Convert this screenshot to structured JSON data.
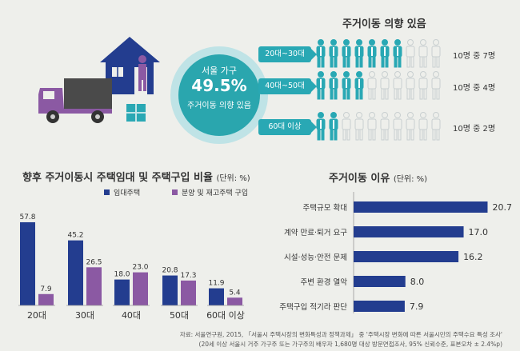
{
  "colors": {
    "navy": "#233d8f",
    "purple": "#8b59a3",
    "teal": "#29a8b4",
    "light_teal": "#bfe3e6"
  },
  "badge": {
    "line1": "서울 가구",
    "line2": "49.5%",
    "line3": "주거이동 의향 있음"
  },
  "intent": {
    "title": "주거이동 의향 있음",
    "rows": [
      {
        "age": "20대~30대",
        "ratio_text": "10명 중 7명",
        "count": 7
      },
      {
        "age": "40대~50대",
        "ratio_text": "10명 중 4명",
        "count": 4
      },
      {
        "age": "60대 이상",
        "ratio_text": "10명 중 2명",
        "count": 2
      }
    ]
  },
  "chart_data": [
    {
      "type": "bar",
      "title": "향후 주거이동시 주택임대 및 주택구입 비율",
      "unit": "(단위: %)",
      "categories": [
        "20대",
        "30대",
        "40대",
        "50대",
        "60대 이상"
      ],
      "series": [
        {
          "name": "임대주택",
          "values": [
            57.8,
            45.2,
            18.0,
            20.8,
            11.9
          ]
        },
        {
          "name": "분양 및 재고주택 구입",
          "values": [
            7.9,
            26.5,
            23.0,
            17.3,
            5.4
          ]
        }
      ],
      "ylim": [
        0,
        60
      ]
    },
    {
      "type": "bar",
      "orientation": "horizontal",
      "title": "주거이동 이유",
      "unit": "(단위: %)",
      "categories": [
        "주택규모 확대",
        "계약 만료·퇴거 요구",
        "시설·성능·안전 문제",
        "주변 환경 열악",
        "주택구입 적기라 판단"
      ],
      "values": [
        20.7,
        17.0,
        16.2,
        8.0,
        7.9
      ],
      "xlim": [
        0,
        22
      ]
    }
  ],
  "source": {
    "line1": "자료: 서울연구원, 2015, 「서울시 주택시장의 변화특성과 정책과제」 중 '주택시장 변화에 따른 서울시민의 주택수요 특성 조사'",
    "line2": "(20세 이상 서울시 거주 가구주 또는 가구주의 배우자 1,680명 대상 방문면접조사, 95% 신뢰수준, 표본오차 ± 2.4%p)"
  }
}
